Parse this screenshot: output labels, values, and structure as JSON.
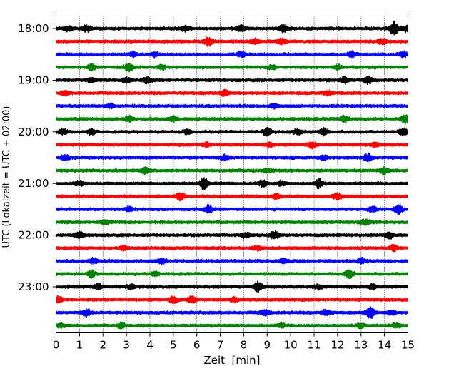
{
  "chart_data": {
    "type": "line",
    "title": "",
    "xlabel": "Zeit  [min]",
    "ylabel": "UTC (Lokalzeit = UTC + 02:00)",
    "xlim": [
      0,
      15
    ],
    "x_ticks": [
      0,
      1,
      2,
      3,
      4,
      5,
      6,
      7,
      8,
      9,
      10,
      11,
      12,
      13,
      14,
      15
    ],
    "x_grid": "dotted vertical lines at each minute",
    "rows_per_hour": 4,
    "row_interval_minutes": 15,
    "first_row_time": "18:00",
    "last_row_time": "23:45",
    "y_tick_labels": [
      "18:00",
      "19:00",
      "20:00",
      "21:00",
      "22:00",
      "23:00"
    ],
    "trace_colors": [
      "#000000",
      "#ff0000",
      "#0000ff",
      "#008000"
    ],
    "series": [
      {
        "time": "18:00",
        "color": "#000000",
        "events": [
          [
            0.5,
            0.6
          ],
          [
            1.3,
            0.8
          ],
          [
            5.5,
            0.6
          ],
          [
            7.9,
            0.7
          ],
          [
            9.7,
            0.9
          ],
          [
            14.4,
            1.6
          ],
          [
            14.9,
            0.6
          ]
        ]
      },
      {
        "time": "18:15",
        "color": "#ff0000",
        "events": [
          [
            6.5,
            0.9
          ],
          [
            8.5,
            0.6
          ],
          [
            9.6,
            0.7
          ],
          [
            13.9,
            0.6
          ]
        ]
      },
      {
        "time": "18:30",
        "color": "#0000ff",
        "events": [
          [
            3.3,
            0.5
          ],
          [
            4.2,
            0.5
          ],
          [
            7.9,
            0.6
          ],
          [
            12.6,
            0.6
          ],
          [
            14.8,
            0.6
          ]
        ]
      },
      {
        "time": "18:45",
        "color": "#008000",
        "events": [
          [
            1.5,
            0.7
          ],
          [
            3.1,
            0.9
          ],
          [
            4.5,
            0.5
          ],
          [
            9.2,
            0.5
          ],
          [
            12.0,
            0.5
          ]
        ]
      },
      {
        "time": "19:00",
        "color": "#000000",
        "events": [
          [
            1.5,
            0.5
          ],
          [
            3.0,
            0.6
          ],
          [
            3.9,
            0.7
          ],
          [
            12.3,
            0.7
          ],
          [
            13.3,
            0.8
          ]
        ]
      },
      {
        "time": "19:15",
        "color": "#ff0000",
        "events": [
          [
            0.4,
            0.5
          ],
          [
            7.2,
            0.7
          ],
          [
            11.6,
            0.5
          ]
        ]
      },
      {
        "time": "19:30",
        "color": "#0000ff",
        "events": [
          [
            2.3,
            0.5
          ],
          [
            9.3,
            0.5
          ]
        ]
      },
      {
        "time": "19:45",
        "color": "#008000",
        "events": [
          [
            3.1,
            0.6
          ],
          [
            5.0,
            0.6
          ],
          [
            12.3,
            0.7
          ],
          [
            14.9,
            0.9
          ]
        ]
      },
      {
        "time": "20:00",
        "color": "#000000",
        "events": [
          [
            0.3,
            0.6
          ],
          [
            1.5,
            0.6
          ],
          [
            5.6,
            0.5
          ],
          [
            9.0,
            0.9
          ],
          [
            10.3,
            0.7
          ],
          [
            11.4,
            0.8
          ],
          [
            14.8,
            0.8
          ]
        ]
      },
      {
        "time": "20:15",
        "color": "#ff0000",
        "events": [
          [
            6.4,
            0.5
          ],
          [
            9.1,
            0.5
          ],
          [
            10.9,
            0.7
          ],
          [
            13.6,
            0.5
          ]
        ]
      },
      {
        "time": "20:30",
        "color": "#0000ff",
        "events": [
          [
            0.4,
            0.6
          ],
          [
            7.2,
            0.6
          ],
          [
            11.4,
            0.5
          ],
          [
            13.3,
            0.9
          ]
        ]
      },
      {
        "time": "20:45",
        "color": "#008000",
        "events": [
          [
            3.8,
            0.7
          ],
          [
            9.0,
            0.5
          ],
          [
            14.0,
            0.8
          ]
        ]
      },
      {
        "time": "21:00",
        "color": "#000000",
        "events": [
          [
            1.0,
            0.6
          ],
          [
            6.3,
            1.4
          ],
          [
            8.8,
            0.7
          ],
          [
            9.6,
            0.5
          ],
          [
            11.2,
            1.0
          ]
        ]
      },
      {
        "time": "21:15",
        "color": "#ff0000",
        "events": [
          [
            5.3,
            0.9
          ],
          [
            9.4,
            0.6
          ],
          [
            12.0,
            0.7
          ]
        ]
      },
      {
        "time": "21:30",
        "color": "#0000ff",
        "events": [
          [
            3.1,
            0.6
          ],
          [
            6.5,
            0.9
          ],
          [
            13.5,
            0.6
          ],
          [
            14.6,
            1.1
          ]
        ]
      },
      {
        "time": "21:45",
        "color": "#008000",
        "events": [
          [
            2.1,
            0.5
          ],
          [
            13.2,
            0.6
          ]
        ]
      },
      {
        "time": "22:00",
        "color": "#000000",
        "events": [
          [
            1.0,
            0.7
          ],
          [
            8.1,
            0.6
          ],
          [
            9.3,
            0.9
          ],
          [
            14.2,
            0.8
          ]
        ]
      },
      {
        "time": "22:15",
        "color": "#ff0000",
        "events": [
          [
            2.9,
            0.6
          ],
          [
            8.6,
            0.5
          ],
          [
            14.4,
            0.7
          ]
        ]
      },
      {
        "time": "22:30",
        "color": "#0000ff",
        "events": [
          [
            1.6,
            0.6
          ],
          [
            4.5,
            0.6
          ],
          [
            9.7,
            0.5
          ],
          [
            13.0,
            0.6
          ]
        ]
      },
      {
        "time": "22:45",
        "color": "#008000",
        "events": [
          [
            1.5,
            0.8
          ],
          [
            4.2,
            0.5
          ],
          [
            12.5,
            0.9
          ]
        ]
      },
      {
        "time": "23:00",
        "color": "#000000",
        "events": [
          [
            1.8,
            0.6
          ],
          [
            3.2,
            0.5
          ],
          [
            8.6,
            1.1
          ],
          [
            11.2,
            0.5
          ],
          [
            13.5,
            0.6
          ]
        ]
      },
      {
        "time": "23:15",
        "color": "#ff0000",
        "events": [
          [
            0.1,
            0.7
          ],
          [
            5.0,
            0.8
          ],
          [
            5.8,
            0.9
          ],
          [
            7.6,
            0.5
          ]
        ]
      },
      {
        "time": "23:30",
        "color": "#0000ff",
        "events": [
          [
            1.3,
            0.9
          ],
          [
            8.9,
            0.7
          ],
          [
            11.5,
            0.6
          ],
          [
            13.4,
            1.3
          ],
          [
            14.3,
            0.5
          ]
        ]
      },
      {
        "time": "23:45",
        "color": "#008000",
        "events": [
          [
            0.2,
            0.5
          ],
          [
            2.8,
            0.6
          ],
          [
            9.6,
            0.5
          ],
          [
            13.0,
            0.5
          ],
          [
            14.5,
            0.5
          ]
        ]
      }
    ]
  }
}
